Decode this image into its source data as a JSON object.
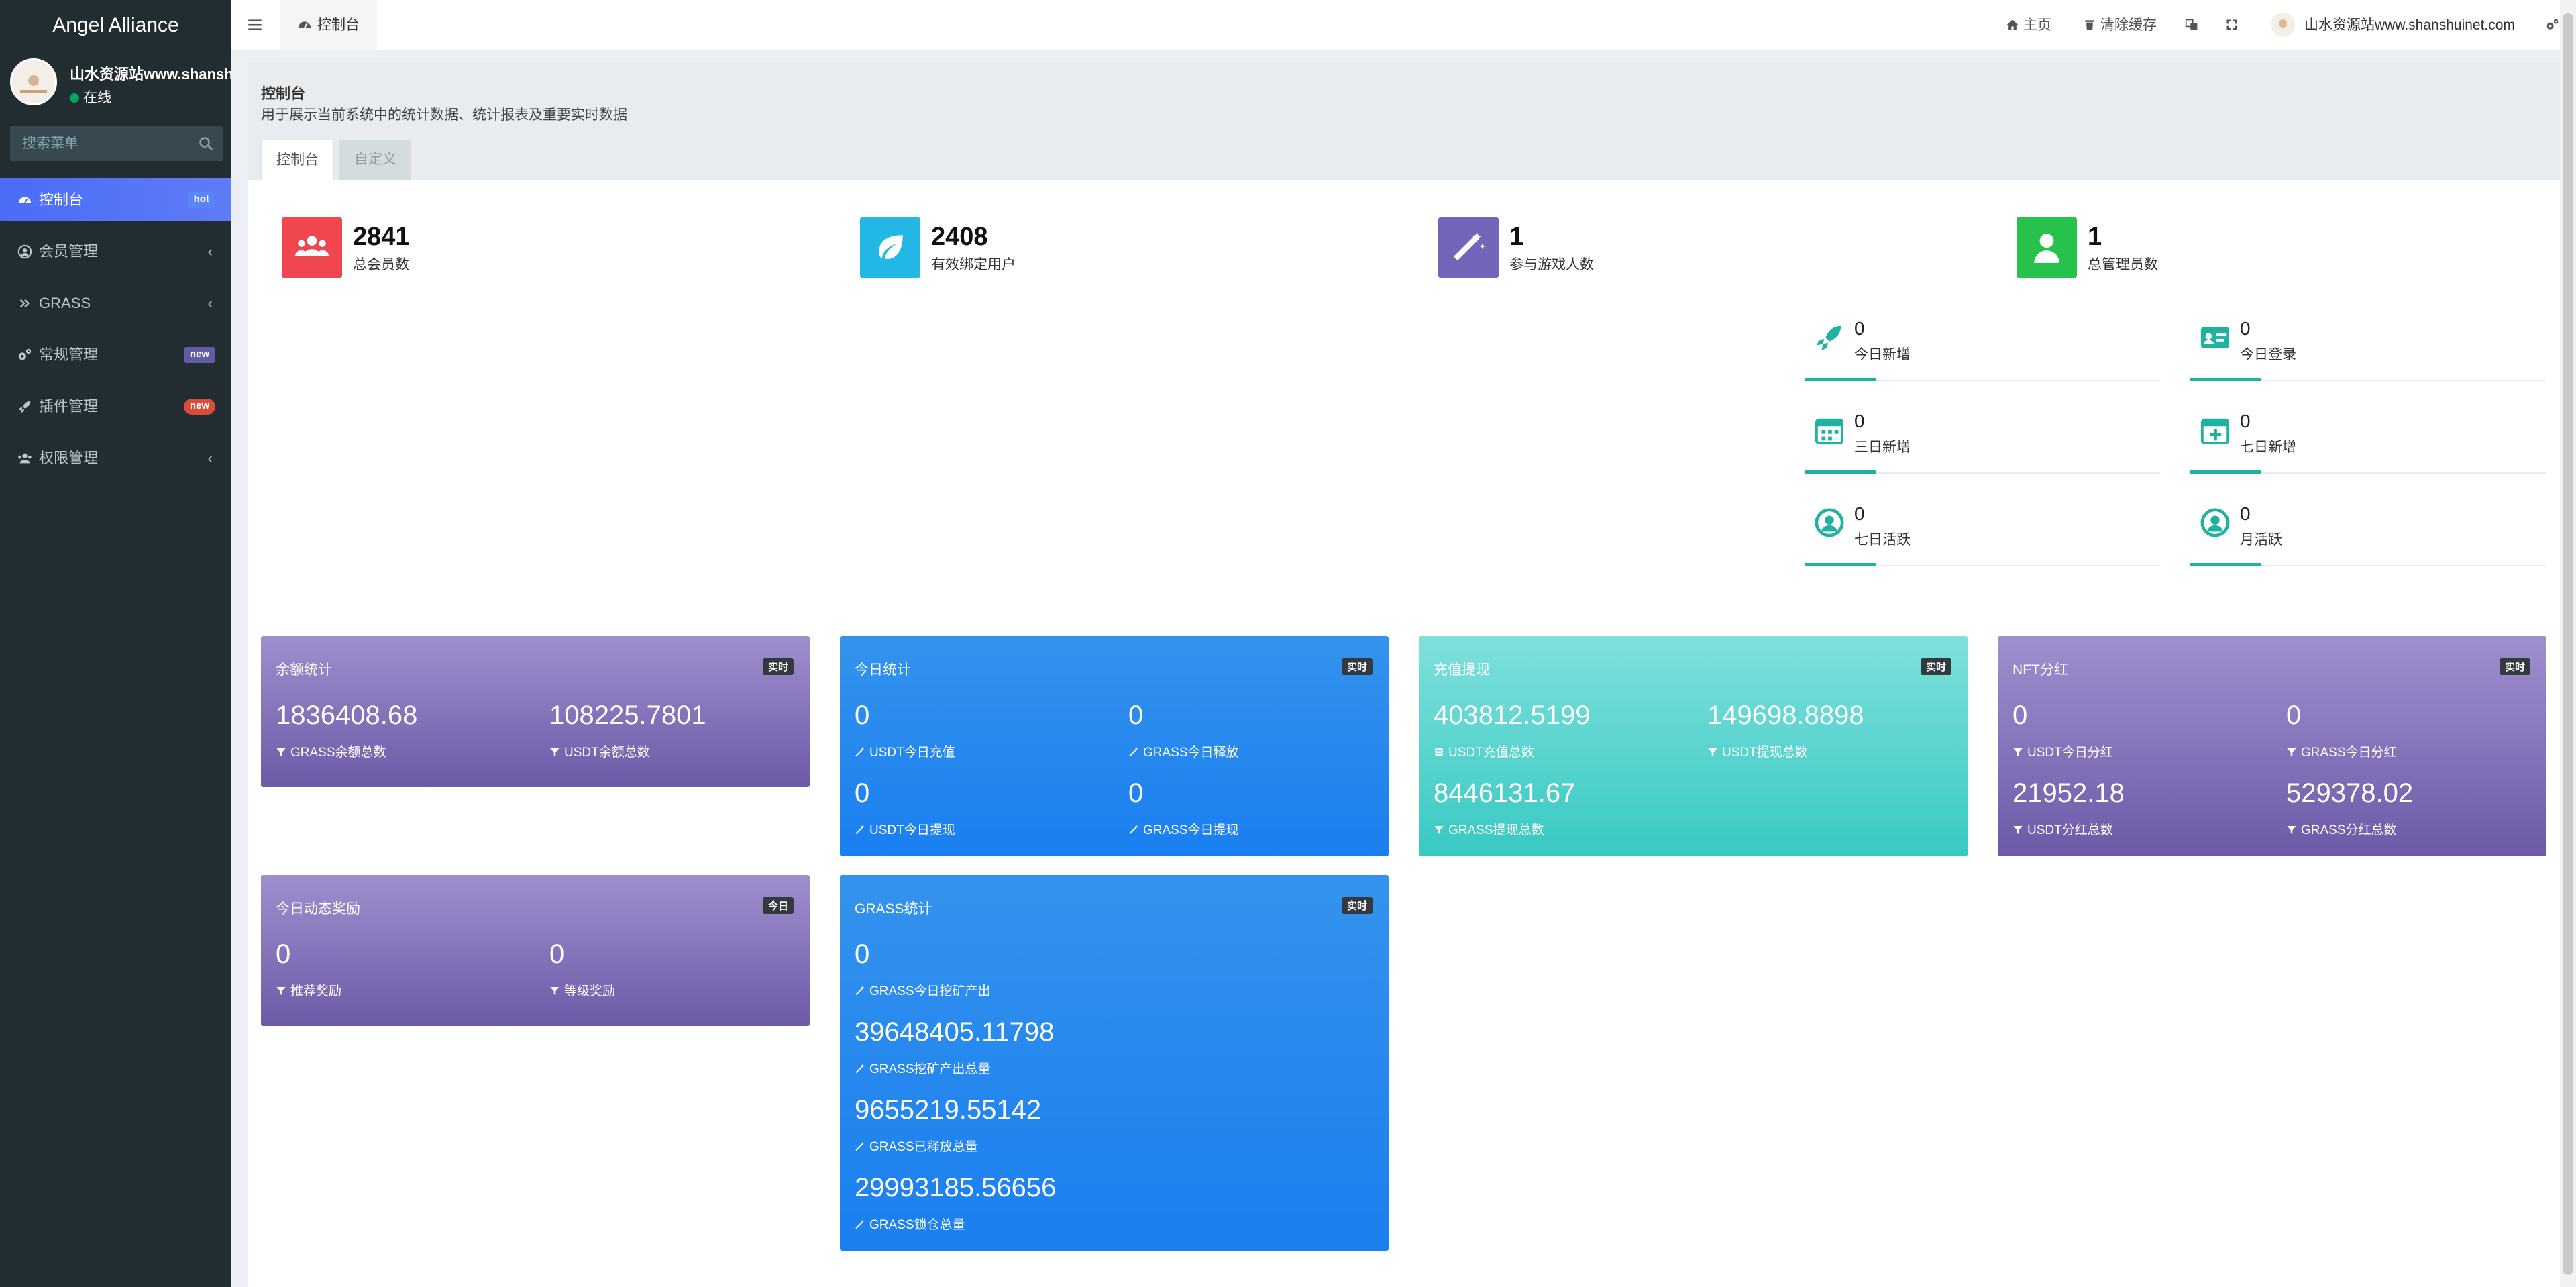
{
  "app": {
    "brand": "Angel Alliance"
  },
  "user": {
    "name": "山水资源站www.shanshuinet.com",
    "status": "在线"
  },
  "search": {
    "placeholder": "搜索菜单"
  },
  "menu": [
    {
      "label": "控制台",
      "icon": "dashboard-icon",
      "badge": "hot"
    },
    {
      "label": "会员管理",
      "icon": "user-circle-icon",
      "chevron": "‹"
    },
    {
      "label": "GRASS",
      "icon": "double-chevron-icon",
      "chevron": "‹"
    },
    {
      "label": "常规管理",
      "icon": "cogs-icon",
      "badge": "new"
    },
    {
      "label": "插件管理",
      "icon": "rocket-icon",
      "badge": "new"
    },
    {
      "label": "权限管理",
      "icon": "users-icon",
      "chevron": "‹"
    }
  ],
  "topbar": {
    "tab": "控制台",
    "home": "主页",
    "clear_cache": "清除缓存",
    "account": "山水资源站www.shanshuinet.com"
  },
  "panel": {
    "title": "控制台",
    "description": "用于展示当前系统中的统计数据、统计报表及重要实时数据",
    "tabs": [
      "控制台",
      "自定义"
    ]
  },
  "stats": [
    {
      "value": "2841",
      "label": "总会员数",
      "color": "#f0474f",
      "icon": "users-icon"
    },
    {
      "value": "2408",
      "label": "有效绑定用户",
      "color": "#23b7e5",
      "icon": "leaf-icon"
    },
    {
      "value": "1",
      "label": "参与游戏人数",
      "color": "#7266ba",
      "icon": "magic-wand-icon"
    },
    {
      "value": "1",
      "label": "总管理员数",
      "color": "#27c24c",
      "icon": "user-icon"
    }
  ],
  "mini_stats": [
    {
      "value": "0",
      "label": "今日新增",
      "icon": "rocket-icon"
    },
    {
      "value": "0",
      "label": "今日登录",
      "icon": "id-card-icon"
    },
    {
      "value": "0",
      "label": "三日新增",
      "icon": "calendar-icon"
    },
    {
      "value": "0",
      "label": "七日新增",
      "icon": "calendar-plus-icon"
    },
    {
      "value": "0",
      "label": "七日活跃",
      "icon": "user-circle-icon"
    },
    {
      "value": "0",
      "label": "月活跃",
      "icon": "user-circle-icon"
    }
  ],
  "cards": {
    "balance": {
      "title": "余额统计",
      "tag": "实时",
      "items": [
        {
          "value": "1836408.68",
          "label": "GRASS余额总数",
          "icon": "filter-icon"
        },
        {
          "value": "108225.7801",
          "label": "USDT余额总数",
          "icon": "filter-icon"
        }
      ]
    },
    "today": {
      "title": "今日统计",
      "tag": "实时",
      "items": [
        {
          "value": "0",
          "label": "USDT今日充值",
          "icon": "magic-wand-icon"
        },
        {
          "value": "0",
          "label": "GRASS今日释放",
          "icon": "magic-wand-icon"
        },
        {
          "value": "0",
          "label": "USDT今日提现",
          "icon": "magic-wand-icon"
        },
        {
          "value": "0",
          "label": "GRASS今日提现",
          "icon": "magic-wand-icon"
        }
      ]
    },
    "recharge": {
      "title": "充值提现",
      "tag": "实时",
      "items": [
        {
          "value": "403812.5199",
          "label": "USDT充值总数",
          "icon": "database-icon"
        },
        {
          "value": "149698.8898",
          "label": "USDT提现总数",
          "icon": "filter-icon"
        },
        {
          "value": "8446131.67",
          "label": "GRASS提现总数",
          "icon": "filter-icon"
        }
      ]
    },
    "nft": {
      "title": "NFT分红",
      "tag": "实时",
      "items": [
        {
          "value": "0",
          "label": "USDT今日分红",
          "icon": "filter-icon"
        },
        {
          "value": "0",
          "label": "GRASS今日分红",
          "icon": "filter-icon"
        },
        {
          "value": "21952.18",
          "label": "USDT分红总数",
          "icon": "filter-icon"
        },
        {
          "value": "529378.02",
          "label": "GRASS分红总数",
          "icon": "filter-icon"
        }
      ]
    },
    "dynamic": {
      "title": "今日动态奖励",
      "tag": "今日",
      "items": [
        {
          "value": "0",
          "label": "推荐奖励",
          "icon": "filter-icon"
        },
        {
          "value": "0",
          "label": "等级奖励",
          "icon": "filter-icon"
        }
      ]
    },
    "grass": {
      "title": "GRASS统计",
      "tag": "实时",
      "items": [
        {
          "value": "0",
          "label": "GRASS今日挖矿产出",
          "icon": "magic-wand-icon"
        },
        {
          "value": "39648405.11798",
          "label": "GRASS挖矿产出总量",
          "icon": "magic-wand-icon"
        },
        {
          "value": "9655219.55142",
          "label": "GRASS已释放总量",
          "icon": "magic-wand-icon"
        },
        {
          "value": "29993185.56656",
          "label": "GRASS锁仓总量",
          "icon": "magic-wand-icon"
        }
      ]
    }
  }
}
